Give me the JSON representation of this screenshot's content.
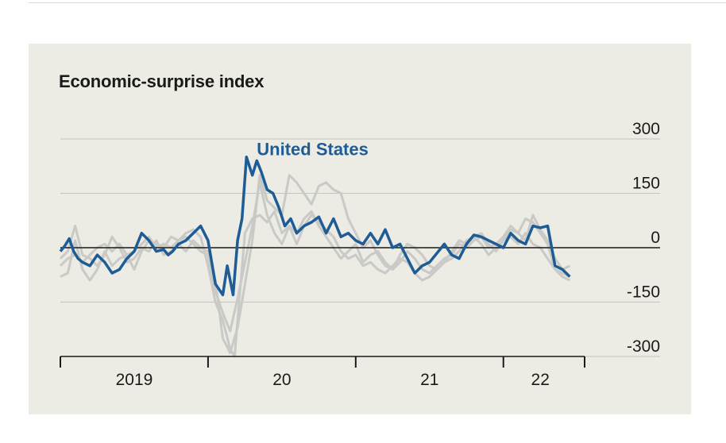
{
  "chart_data": {
    "type": "line",
    "title": "Economic-surprise index",
    "xlabel": "",
    "ylabel": "",
    "ylim": [
      -300,
      300
    ],
    "y_ticks": [
      300,
      150,
      0,
      -150,
      -300
    ],
    "y_tick_labels": [
      "300",
      "150",
      "0",
      "-150",
      "-300"
    ],
    "xlim": [
      2019.0,
      2022.55
    ],
    "x_ticks": [
      2019.0,
      2020.0,
      2021.0,
      2022.0
    ],
    "x_tick_labels": [
      "2019",
      "20",
      "21",
      "22"
    ],
    "x_label_positions": [
      2019.5,
      2020.5,
      2021.5,
      2022.25
    ],
    "grid": true,
    "highlight_color": "#1e5c96",
    "background_series_color": "#c9c9c7",
    "series": [
      {
        "name": "United States",
        "color": "#1e5c96",
        "label_at": [
          2020.33,
          255
        ],
        "x": [
          2019.0,
          2019.03,
          2019.06,
          2019.09,
          2019.12,
          2019.15,
          2019.2,
          2019.25,
          2019.3,
          2019.35,
          2019.4,
          2019.45,
          2019.5,
          2019.55,
          2019.6,
          2019.65,
          2019.7,
          2019.73,
          2019.76,
          2019.8,
          2019.85,
          2019.9,
          2019.95,
          2020.0,
          2020.05,
          2020.1,
          2020.13,
          2020.17,
          2020.2,
          2020.23,
          2020.26,
          2020.3,
          2020.33,
          2020.36,
          2020.4,
          2020.44,
          2020.48,
          2020.52,
          2020.56,
          2020.6,
          2020.65,
          2020.7,
          2020.75,
          2020.8,
          2020.85,
          2020.9,
          2020.95,
          2021.0,
          2021.05,
          2021.1,
          2021.15,
          2021.2,
          2021.25,
          2021.3,
          2021.35,
          2021.4,
          2021.45,
          2021.5,
          2021.55,
          2021.6,
          2021.65,
          2021.7,
          2021.75,
          2021.8,
          2021.85,
          2021.9,
          2021.95,
          2022.0,
          2022.05,
          2022.1,
          2022.15,
          2022.2,
          2022.25,
          2022.3,
          2022.35,
          2022.4,
          2022.45
        ],
        "y": [
          -10,
          5,
          25,
          -10,
          -30,
          -40,
          -50,
          -20,
          -40,
          -70,
          -60,
          -30,
          -10,
          40,
          20,
          -10,
          -5,
          -20,
          -10,
          10,
          20,
          40,
          60,
          20,
          -100,
          -130,
          -50,
          -130,
          20,
          80,
          250,
          200,
          240,
          210,
          160,
          150,
          110,
          60,
          80,
          40,
          60,
          70,
          85,
          40,
          80,
          30,
          40,
          20,
          10,
          40,
          10,
          50,
          0,
          10,
          -30,
          -70,
          -50,
          -40,
          -15,
          10,
          -20,
          -30,
          10,
          35,
          30,
          20,
          10,
          0,
          40,
          20,
          10,
          60,
          55,
          60,
          -50,
          -60,
          -80
        ]
      }
    ],
    "background_series": [
      {
        "x": [
          2019.0,
          2019.05,
          2019.1,
          2019.15,
          2019.2,
          2019.25,
          2019.3,
          2019.35,
          2019.4,
          2019.45,
          2019.5,
          2019.55,
          2019.6,
          2019.65,
          2019.7,
          2019.75,
          2019.8,
          2019.85,
          2019.9,
          2019.95,
          2020.0,
          2020.05,
          2020.1,
          2020.15,
          2020.18,
          2020.21,
          2020.25,
          2020.3,
          2020.35,
          2020.4,
          2020.45,
          2020.5,
          2020.55,
          2020.6,
          2020.65,
          2020.7,
          2020.75,
          2020.8,
          2020.85,
          2020.9,
          2020.95,
          2021.0,
          2021.05,
          2021.1,
          2021.15,
          2021.2,
          2021.25,
          2021.3,
          2021.35,
          2021.4,
          2021.45,
          2021.5,
          2021.55,
          2021.6,
          2021.65,
          2021.7,
          2021.75,
          2021.8,
          2021.85,
          2021.9,
          2021.95,
          2022.0,
          2022.05,
          2022.1,
          2022.15,
          2022.2,
          2022.25,
          2022.3,
          2022.35,
          2022.4,
          2022.45
        ],
        "y": [
          -80,
          -70,
          20,
          -60,
          -90,
          -60,
          -10,
          -50,
          -30,
          -20,
          -60,
          -10,
          20,
          10,
          0,
          30,
          20,
          40,
          50,
          30,
          -50,
          -150,
          -200,
          -280,
          -300,
          -150,
          40,
          80,
          90,
          70,
          100,
          40,
          60,
          10,
          60,
          90,
          70,
          50,
          30,
          -10,
          -30,
          -20,
          -50,
          -40,
          -60,
          -70,
          -50,
          -30,
          -40,
          -70,
          -90,
          -80,
          -60,
          -40,
          -30,
          -10,
          20,
          30,
          40,
          10,
          -10,
          20,
          50,
          40,
          80,
          70,
          40,
          10,
          -60,
          -80,
          -90
        ]
      },
      {
        "x": [
          2019.0,
          2019.05,
          2019.1,
          2019.15,
          2019.2,
          2019.25,
          2019.3,
          2019.35,
          2019.4,
          2019.45,
          2019.5,
          2019.55,
          2019.6,
          2019.65,
          2019.7,
          2019.75,
          2019.8,
          2019.85,
          2019.9,
          2019.95,
          2020.0,
          2020.05,
          2020.1,
          2020.15,
          2020.2,
          2020.25,
          2020.3,
          2020.35,
          2020.4,
          2020.45,
          2020.5,
          2020.55,
          2020.6,
          2020.65,
          2020.7,
          2020.75,
          2020.8,
          2020.85,
          2020.9,
          2020.95,
          2021.0,
          2021.05,
          2021.1,
          2021.15,
          2021.2,
          2021.25,
          2021.3,
          2021.35,
          2021.4,
          2021.45,
          2021.5,
          2021.55,
          2021.6,
          2021.65,
          2021.7,
          2021.75,
          2021.8,
          2021.85,
          2021.9,
          2021.95,
          2022.0,
          2022.05,
          2022.1,
          2022.15,
          2022.2,
          2022.25,
          2022.3,
          2022.35,
          2022.4,
          2022.45
        ],
        "y": [
          -30,
          -10,
          60,
          -20,
          -30,
          -50,
          -20,
          30,
          0,
          -40,
          -30,
          0,
          -10,
          20,
          -20,
          -10,
          10,
          -10,
          20,
          0,
          -10,
          -90,
          -250,
          -290,
          -220,
          -100,
          20,
          200,
          130,
          110,
          90,
          200,
          180,
          150,
          120,
          170,
          180,
          160,
          150,
          80,
          40,
          0,
          20,
          -20,
          -50,
          -60,
          -40,
          -10,
          -30,
          -60,
          -70,
          -50,
          -30,
          -20,
          10,
          0,
          20,
          30,
          0,
          10,
          30,
          60,
          40,
          20,
          90,
          50,
          20,
          -30,
          -60,
          -50
        ]
      },
      {
        "x": [
          2019.0,
          2019.05,
          2019.1,
          2019.15,
          2019.2,
          2019.25,
          2019.3,
          2019.35,
          2019.4,
          2019.45,
          2019.5,
          2019.55,
          2019.6,
          2019.65,
          2019.7,
          2019.75,
          2019.8,
          2019.85,
          2019.9,
          2019.95,
          2020.0,
          2020.05,
          2020.1,
          2020.15,
          2020.2,
          2020.25,
          2020.3,
          2020.35,
          2020.4,
          2020.45,
          2020.5,
          2020.55,
          2020.6,
          2020.65,
          2020.7,
          2020.75,
          2020.8,
          2020.85,
          2020.9,
          2020.95,
          2021.0,
          2021.05,
          2021.1,
          2021.15,
          2021.2,
          2021.25,
          2021.3,
          2021.35,
          2021.4,
          2021.45,
          2021.5,
          2021.55,
          2021.6,
          2021.65,
          2021.7,
          2021.75,
          2021.8,
          2021.85,
          2021.9,
          2021.95,
          2022.0,
          2022.05,
          2022.1,
          2022.15,
          2022.2,
          2022.25,
          2022.3,
          2022.35,
          2022.4,
          2022.45
        ],
        "y": [
          -50,
          -30,
          -20,
          -40,
          -20,
          0,
          10,
          -10,
          10,
          -20,
          -10,
          10,
          30,
          0,
          10,
          0,
          20,
          30,
          10,
          -10,
          -20,
          -120,
          -180,
          -230,
          -140,
          -40,
          60,
          180,
          90,
          40,
          10,
          60,
          40,
          80,
          100,
          60,
          30,
          0,
          -30,
          -10,
          10,
          -40,
          -20,
          -10,
          -40,
          -60,
          -20,
          10,
          0,
          -20,
          -50,
          -60,
          -40,
          -10,
          20,
          10,
          30,
          10,
          -20,
          0,
          20,
          30,
          10,
          40,
          10,
          0,
          -30,
          -60,
          -70,
          -80
        ]
      }
    ]
  }
}
